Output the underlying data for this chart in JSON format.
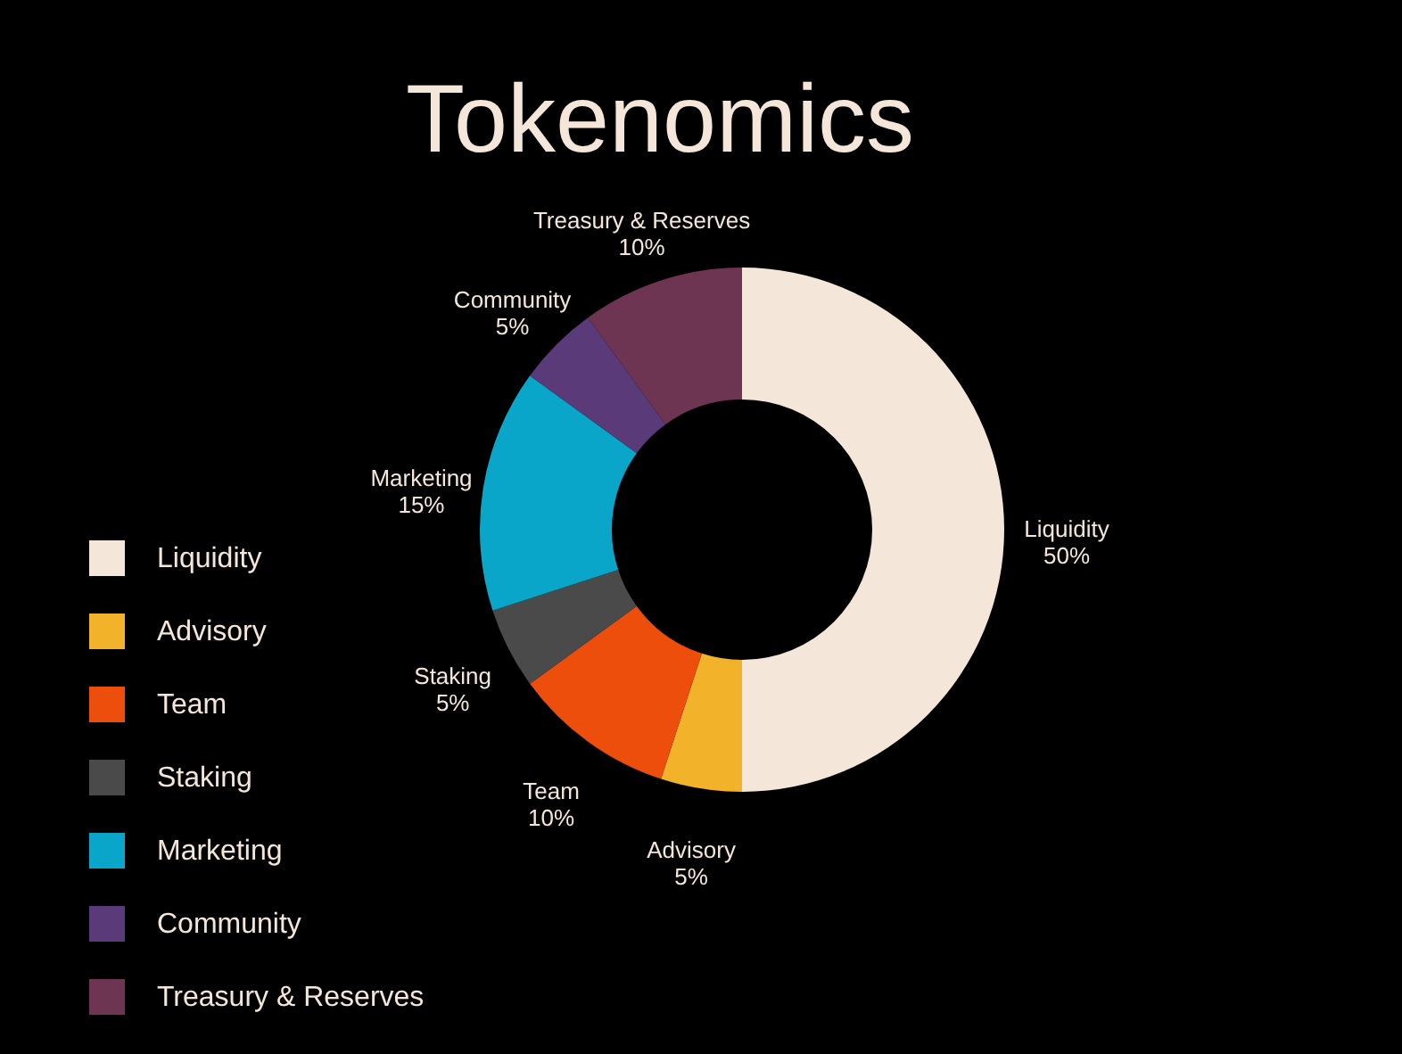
{
  "chart_data": {
    "type": "donut",
    "title": "Tokenomics",
    "categories": [
      "Liquidity",
      "Advisory",
      "Team",
      "Staking",
      "Marketing",
      "Community",
      "Treasury & Reserves"
    ],
    "values": [
      50,
      5,
      10,
      5,
      15,
      5,
      10
    ],
    "colors": [
      "#f5e6da",
      "#f2b22a",
      "#ee4e0c",
      "#4a4a4a",
      "#0aa6c9",
      "#5a3a78",
      "#6e3552"
    ],
    "value_labels": [
      "50%",
      "5%",
      "10%",
      "5%",
      "15%",
      "5%",
      "10%"
    ],
    "legend": "left"
  }
}
